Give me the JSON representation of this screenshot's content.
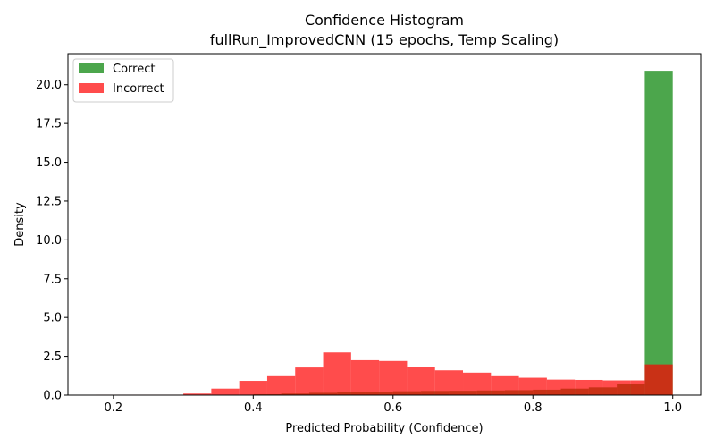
{
  "chart_data": {
    "type": "bar",
    "title_line1": "Confidence Histogram",
    "title_line2": "fullRun_ImprovedCNN (15 epochs, Temp Scaling)",
    "xlabel": "Predicted Probability (Confidence)",
    "ylabel": "Density",
    "xlim": [
      0.135,
      1.04
    ],
    "ylim": [
      0,
      22
    ],
    "xticks": [
      {
        "value": 0.2,
        "label": "0.2"
      },
      {
        "value": 0.4,
        "label": "0.4"
      },
      {
        "value": 0.6,
        "label": "0.6"
      },
      {
        "value": 0.8,
        "label": "0.8"
      },
      {
        "value": 1.0,
        "label": "1.0"
      }
    ],
    "yticks": [
      {
        "value": 0.0,
        "label": "0.0"
      },
      {
        "value": 2.5,
        "label": "2.5"
      },
      {
        "value": 5.0,
        "label": "5.0"
      },
      {
        "value": 7.5,
        "label": "7.5"
      },
      {
        "value": 10.0,
        "label": "10.0"
      },
      {
        "value": 12.5,
        "label": "12.5"
      },
      {
        "value": 15.0,
        "label": "15.0"
      },
      {
        "value": 17.5,
        "label": "17.5"
      },
      {
        "value": 20.0,
        "label": "20.0"
      }
    ],
    "legend_position": "upper-left",
    "grid": false,
    "series": [
      {
        "name": "Correct",
        "color": "#008000",
        "opacity": 0.7,
        "bins": [
          {
            "x0": 0.175,
            "x1": 0.21,
            "value": 0.0
          },
          {
            "x0": 0.21,
            "x1": 0.245,
            "value": 0.0
          },
          {
            "x0": 0.245,
            "x1": 0.28,
            "value": 0.0
          },
          {
            "x0": 0.28,
            "x1": 0.315,
            "value": 0.0
          },
          {
            "x0": 0.315,
            "x1": 0.36,
            "value": 0.01
          },
          {
            "x0": 0.36,
            "x1": 0.4,
            "value": 0.03
          },
          {
            "x0": 0.4,
            "x1": 0.44,
            "value": 0.06
          },
          {
            "x0": 0.44,
            "x1": 0.48,
            "value": 0.1
          },
          {
            "x0": 0.48,
            "x1": 0.52,
            "value": 0.15
          },
          {
            "x0": 0.52,
            "x1": 0.56,
            "value": 0.2
          },
          {
            "x0": 0.56,
            "x1": 0.6,
            "value": 0.23
          },
          {
            "x0": 0.6,
            "x1": 0.64,
            "value": 0.25
          },
          {
            "x0": 0.64,
            "x1": 0.68,
            "value": 0.27
          },
          {
            "x0": 0.68,
            "x1": 0.72,
            "value": 0.28
          },
          {
            "x0": 0.72,
            "x1": 0.76,
            "value": 0.3
          },
          {
            "x0": 0.76,
            "x1": 0.8,
            "value": 0.32
          },
          {
            "x0": 0.8,
            "x1": 0.84,
            "value": 0.35
          },
          {
            "x0": 0.84,
            "x1": 0.88,
            "value": 0.42
          },
          {
            "x0": 0.88,
            "x1": 0.92,
            "value": 0.5
          },
          {
            "x0": 0.92,
            "x1": 0.96,
            "value": 0.75
          },
          {
            "x0": 0.96,
            "x1": 1.0,
            "value": 20.9
          }
        ]
      },
      {
        "name": "Incorrect",
        "color": "#ff0000",
        "opacity": 0.7,
        "bins": [
          {
            "x0": 0.175,
            "x1": 0.215,
            "value": 0.03
          },
          {
            "x0": 0.215,
            "x1": 0.255,
            "value": 0.03
          },
          {
            "x0": 0.255,
            "x1": 0.3,
            "value": 0.03
          },
          {
            "x0": 0.3,
            "x1": 0.34,
            "value": 0.1
          },
          {
            "x0": 0.34,
            "x1": 0.38,
            "value": 0.42
          },
          {
            "x0": 0.38,
            "x1": 0.42,
            "value": 0.92
          },
          {
            "x0": 0.42,
            "x1": 0.46,
            "value": 1.22
          },
          {
            "x0": 0.46,
            "x1": 0.5,
            "value": 1.78
          },
          {
            "x0": 0.5,
            "x1": 0.54,
            "value": 2.75
          },
          {
            "x0": 0.54,
            "x1": 0.58,
            "value": 2.25
          },
          {
            "x0": 0.58,
            "x1": 0.62,
            "value": 2.2
          },
          {
            "x0": 0.62,
            "x1": 0.66,
            "value": 1.8
          },
          {
            "x0": 0.66,
            "x1": 0.7,
            "value": 1.6
          },
          {
            "x0": 0.7,
            "x1": 0.74,
            "value": 1.45
          },
          {
            "x0": 0.74,
            "x1": 0.78,
            "value": 1.22
          },
          {
            "x0": 0.78,
            "x1": 0.82,
            "value": 1.12
          },
          {
            "x0": 0.82,
            "x1": 0.86,
            "value": 1.0
          },
          {
            "x0": 0.86,
            "x1": 0.9,
            "value": 0.98
          },
          {
            "x0": 0.9,
            "x1": 0.94,
            "value": 0.95
          },
          {
            "x0": 0.94,
            "x1": 0.96,
            "value": 0.95
          },
          {
            "x0": 0.96,
            "x1": 1.0,
            "value": 1.98
          }
        ]
      }
    ]
  }
}
